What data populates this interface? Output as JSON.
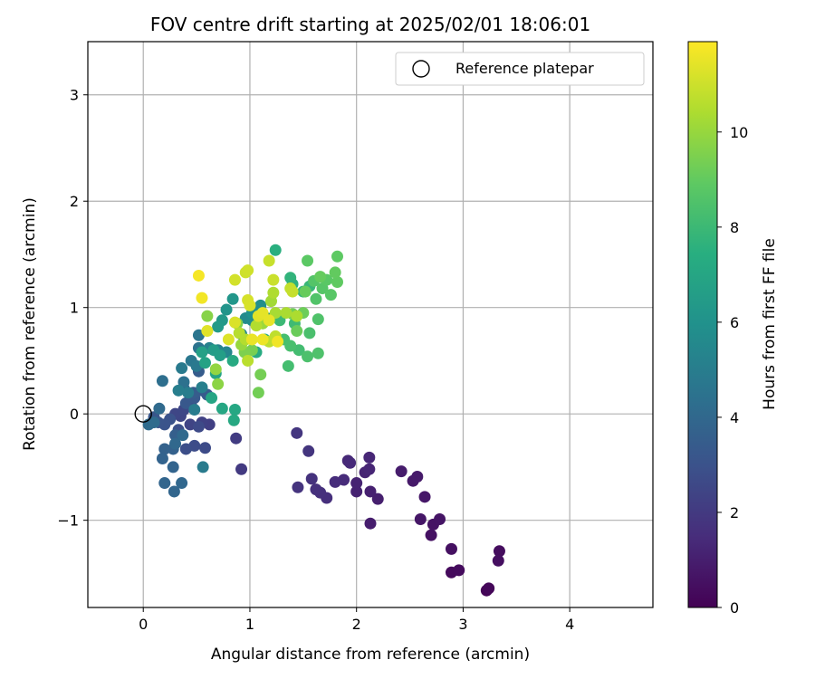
{
  "chart_data": {
    "type": "scatter",
    "title": "FOV centre drift starting at 2025/02/01 18:06:01",
    "xlabel": "Angular distance from reference (arcmin)",
    "ylabel": "Rotation from reference (arcmin)",
    "xlim": [
      -0.52,
      4.78
    ],
    "ylim": [
      -1.82,
      3.5
    ],
    "xticks": [
      0,
      1,
      2,
      3,
      4
    ],
    "yticks": [
      -1,
      0,
      1,
      2,
      3
    ],
    "grid": true,
    "legend": {
      "placement": "top-right",
      "entries": [
        "Reference platepar"
      ]
    },
    "reference_point": {
      "x": 0,
      "y": 0,
      "marker": "open-circle"
    },
    "colorbar": {
      "label": "Hours from first FF file",
      "range": [
        0,
        11.9
      ],
      "ticks": [
        0,
        2,
        4,
        6,
        8,
        10
      ],
      "colormap": "viridis"
    },
    "points": [
      {
        "x": 3.22,
        "y": -1.66,
        "c": 0.1
      },
      {
        "x": 3.24,
        "y": -1.64,
        "c": 0.2
      },
      {
        "x": 2.89,
        "y": -1.49,
        "c": 0.3
      },
      {
        "x": 2.96,
        "y": -1.47,
        "c": 0.35
      },
      {
        "x": 3.34,
        "y": -1.29,
        "c": 0.4
      },
      {
        "x": 3.33,
        "y": -1.38,
        "c": 0.45
      },
      {
        "x": 2.89,
        "y": -1.27,
        "c": 0.5
      },
      {
        "x": 2.7,
        "y": -1.14,
        "c": 0.55
      },
      {
        "x": 2.72,
        "y": -1.04,
        "c": 0.6
      },
      {
        "x": 2.78,
        "y": -0.99,
        "c": 0.65
      },
      {
        "x": 2.6,
        "y": -0.99,
        "c": 0.7
      },
      {
        "x": 2.64,
        "y": -0.78,
        "c": 0.75
      },
      {
        "x": 2.53,
        "y": -0.63,
        "c": 0.8
      },
      {
        "x": 2.57,
        "y": -0.59,
        "c": 0.85
      },
      {
        "x": 2.42,
        "y": -0.54,
        "c": 0.9
      },
      {
        "x": 2.13,
        "y": -1.03,
        "c": 0.95
      },
      {
        "x": 2.2,
        "y": -0.8,
        "c": 1.0
      },
      {
        "x": 2.13,
        "y": -0.73,
        "c": 1.05
      },
      {
        "x": 2.0,
        "y": -0.73,
        "c": 1.1
      },
      {
        "x": 2.0,
        "y": -0.65,
        "c": 1.15
      },
      {
        "x": 2.08,
        "y": -0.55,
        "c": 1.2
      },
      {
        "x": 2.12,
        "y": -0.52,
        "c": 1.25
      },
      {
        "x": 2.12,
        "y": -0.41,
        "c": 1.3
      },
      {
        "x": 1.92,
        "y": -0.44,
        "c": 1.35
      },
      {
        "x": 1.94,
        "y": -0.46,
        "c": 1.4
      },
      {
        "x": 1.88,
        "y": -0.62,
        "c": 1.45
      },
      {
        "x": 1.8,
        "y": -0.64,
        "c": 1.5
      },
      {
        "x": 1.72,
        "y": -0.79,
        "c": 1.55
      },
      {
        "x": 1.66,
        "y": -0.74,
        "c": 1.6
      },
      {
        "x": 1.62,
        "y": -0.71,
        "c": 1.65
      },
      {
        "x": 1.58,
        "y": -0.61,
        "c": 1.7
      },
      {
        "x": 1.45,
        "y": -0.69,
        "c": 1.75
      },
      {
        "x": 1.55,
        "y": -0.35,
        "c": 1.8
      },
      {
        "x": 1.44,
        "y": -0.18,
        "c": 1.85
      },
      {
        "x": 0.92,
        "y": -0.52,
        "c": 2.0
      },
      {
        "x": 0.87,
        "y": -0.23,
        "c": 2.1
      },
      {
        "x": 0.62,
        "y": -0.1,
        "c": 2.2
      },
      {
        "x": 0.55,
        "y": -0.08,
        "c": 2.3
      },
      {
        "x": 0.44,
        "y": -0.1,
        "c": 2.4
      },
      {
        "x": 0.35,
        "y": -0.02,
        "c": 2.45
      },
      {
        "x": 0.3,
        "y": 0.0,
        "c": 2.5
      },
      {
        "x": 0.38,
        "y": 0.04,
        "c": 2.55
      },
      {
        "x": 0.45,
        "y": 0.08,
        "c": 2.6
      },
      {
        "x": 0.52,
        "y": -0.12,
        "c": 2.65
      },
      {
        "x": 0.58,
        "y": -0.32,
        "c": 2.7
      },
      {
        "x": 0.48,
        "y": -0.3,
        "c": 2.75
      },
      {
        "x": 0.4,
        "y": -0.33,
        "c": 2.8
      },
      {
        "x": 0.33,
        "y": -0.15,
        "c": 2.9
      },
      {
        "x": 0.25,
        "y": -0.05,
        "c": 3.0
      },
      {
        "x": 0.2,
        "y": -0.1,
        "c": 3.05
      },
      {
        "x": 0.14,
        "y": -0.08,
        "c": 3.1
      },
      {
        "x": 0.1,
        "y": -0.03,
        "c": 3.2
      },
      {
        "x": 0.4,
        "y": 0.1,
        "c": 3.25
      },
      {
        "x": 0.48,
        "y": 0.15,
        "c": 3.3
      },
      {
        "x": 0.55,
        "y": 0.22,
        "c": 3.35
      },
      {
        "x": 0.6,
        "y": 0.18,
        "c": 3.4
      },
      {
        "x": 0.52,
        "y": 0.4,
        "c": 3.45
      },
      {
        "x": 0.47,
        "y": 0.2,
        "c": 3.5
      },
      {
        "x": 0.38,
        "y": 0.24,
        "c": 3.55
      },
      {
        "x": 0.3,
        "y": -0.2,
        "c": 3.6
      },
      {
        "x": 0.28,
        "y": -0.33,
        "c": 3.65
      },
      {
        "x": 0.2,
        "y": -0.33,
        "c": 3.7
      },
      {
        "x": 0.18,
        "y": -0.42,
        "c": 3.75
      },
      {
        "x": 0.28,
        "y": -0.5,
        "c": 3.8
      },
      {
        "x": 0.2,
        "y": -0.65,
        "c": 3.85
      },
      {
        "x": 0.29,
        "y": -0.73,
        "c": 3.9
      },
      {
        "x": 0.36,
        "y": -0.65,
        "c": 3.95
      },
      {
        "x": 0.3,
        "y": -0.28,
        "c": 4.0
      },
      {
        "x": 0.37,
        "y": -0.2,
        "c": 4.05
      },
      {
        "x": 0.15,
        "y": 0.05,
        "c": 4.1
      },
      {
        "x": 0.05,
        "y": -0.1,
        "c": 4.15
      },
      {
        "x": 0.1,
        "y": -0.08,
        "c": 4.2
      },
      {
        "x": 0.18,
        "y": 0.31,
        "c": 4.3
      },
      {
        "x": 0.38,
        "y": 0.3,
        "c": 4.4
      },
      {
        "x": 0.52,
        "y": 0.62,
        "c": 4.5
      },
      {
        "x": 0.52,
        "y": 0.74,
        "c": 4.6
      },
      {
        "x": 0.45,
        "y": 0.5,
        "c": 4.7
      },
      {
        "x": 0.5,
        "y": 0.45,
        "c": 4.8
      },
      {
        "x": 0.36,
        "y": 0.43,
        "c": 4.85
      },
      {
        "x": 0.56,
        "y": -0.5,
        "c": 4.9
      },
      {
        "x": 0.48,
        "y": 0.04,
        "c": 4.95
      },
      {
        "x": 0.42,
        "y": 0.2,
        "c": 5.0
      },
      {
        "x": 0.33,
        "y": 0.22,
        "c": 5.05
      },
      {
        "x": 0.55,
        "y": 0.25,
        "c": 5.1
      },
      {
        "x": 0.62,
        "y": 0.62,
        "c": 5.2
      },
      {
        "x": 0.7,
        "y": 0.6,
        "c": 5.3
      },
      {
        "x": 0.78,
        "y": 0.58,
        "c": 5.4
      },
      {
        "x": 0.92,
        "y": 0.75,
        "c": 5.5
      },
      {
        "x": 0.96,
        "y": 0.9,
        "c": 5.6
      },
      {
        "x": 1.02,
        "y": 0.88,
        "c": 5.7
      },
      {
        "x": 1.1,
        "y": 1.02,
        "c": 5.8
      },
      {
        "x": 1.16,
        "y": 0.9,
        "c": 5.9
      },
      {
        "x": 1.02,
        "y": 0.95,
        "c": 6.0
      },
      {
        "x": 0.78,
        "y": 0.98,
        "c": 6.1
      },
      {
        "x": 0.84,
        "y": 1.08,
        "c": 6.2
      },
      {
        "x": 0.74,
        "y": 0.88,
        "c": 6.3
      },
      {
        "x": 0.7,
        "y": 0.82,
        "c": 6.4
      },
      {
        "x": 0.66,
        "y": 0.6,
        "c": 6.5
      },
      {
        "x": 0.72,
        "y": 0.55,
        "c": 6.6
      },
      {
        "x": 0.55,
        "y": 0.58,
        "c": 6.7
      },
      {
        "x": 0.58,
        "y": 0.48,
        "c": 6.8
      },
      {
        "x": 0.68,
        "y": 0.38,
        "c": 6.9
      },
      {
        "x": 0.64,
        "y": 0.15,
        "c": 7.0
      },
      {
        "x": 0.74,
        "y": 0.05,
        "c": 7.05
      },
      {
        "x": 0.86,
        "y": 0.04,
        "c": 7.1
      },
      {
        "x": 0.85,
        "y": -0.06,
        "c": 7.15
      },
      {
        "x": 0.84,
        "y": 0.5,
        "c": 7.2
      },
      {
        "x": 1.06,
        "y": 0.58,
        "c": 7.3
      },
      {
        "x": 1.14,
        "y": 0.7,
        "c": 7.4
      },
      {
        "x": 1.24,
        "y": 1.54,
        "c": 7.5
      },
      {
        "x": 1.4,
        "y": 1.22,
        "c": 7.6
      },
      {
        "x": 1.38,
        "y": 1.28,
        "c": 7.7
      },
      {
        "x": 1.5,
        "y": 1.15,
        "c": 7.8
      },
      {
        "x": 1.56,
        "y": 1.2,
        "c": 7.9
      },
      {
        "x": 1.28,
        "y": 0.88,
        "c": 8.0
      },
      {
        "x": 1.42,
        "y": 0.85,
        "c": 8.1
      },
      {
        "x": 1.46,
        "y": 0.6,
        "c": 8.2
      },
      {
        "x": 1.36,
        "y": 0.45,
        "c": 8.25
      },
      {
        "x": 1.32,
        "y": 0.7,
        "c": 8.3
      },
      {
        "x": 1.38,
        "y": 0.64,
        "c": 8.35
      },
      {
        "x": 1.56,
        "y": 0.76,
        "c": 8.4
      },
      {
        "x": 1.54,
        "y": 0.54,
        "c": 8.45
      },
      {
        "x": 1.64,
        "y": 0.57,
        "c": 8.5
      },
      {
        "x": 1.64,
        "y": 0.89,
        "c": 8.55
      },
      {
        "x": 1.62,
        "y": 1.08,
        "c": 8.6
      },
      {
        "x": 1.6,
        "y": 1.25,
        "c": 8.65
      },
      {
        "x": 1.68,
        "y": 1.18,
        "c": 8.7
      },
      {
        "x": 1.76,
        "y": 1.12,
        "c": 8.75
      },
      {
        "x": 1.72,
        "y": 1.26,
        "c": 8.8
      },
      {
        "x": 1.54,
        "y": 1.44,
        "c": 8.85
      },
      {
        "x": 1.82,
        "y": 1.48,
        "c": 8.9
      },
      {
        "x": 1.82,
        "y": 1.24,
        "c": 8.95
      },
      {
        "x": 1.8,
        "y": 1.33,
        "c": 9.0
      },
      {
        "x": 1.66,
        "y": 1.29,
        "c": 9.05
      },
      {
        "x": 1.52,
        "y": 1.15,
        "c": 9.1
      },
      {
        "x": 1.44,
        "y": 0.78,
        "c": 9.15
      },
      {
        "x": 1.5,
        "y": 0.95,
        "c": 9.2
      },
      {
        "x": 1.4,
        "y": 0.94,
        "c": 9.25
      },
      {
        "x": 1.08,
        "y": 0.2,
        "c": 9.3
      },
      {
        "x": 1.1,
        "y": 0.37,
        "c": 9.35
      },
      {
        "x": 1.02,
        "y": 0.6,
        "c": 9.4
      },
      {
        "x": 0.95,
        "y": 0.58,
        "c": 9.5
      },
      {
        "x": 0.88,
        "y": 0.85,
        "c": 9.6
      },
      {
        "x": 0.6,
        "y": 0.92,
        "c": 9.7
      },
      {
        "x": 0.7,
        "y": 0.28,
        "c": 9.8
      },
      {
        "x": 0.68,
        "y": 0.42,
        "c": 9.9
      },
      {
        "x": 0.92,
        "y": 0.65,
        "c": 10.0
      },
      {
        "x": 1.12,
        "y": 0.85,
        "c": 10.1
      },
      {
        "x": 1.2,
        "y": 1.06,
        "c": 10.2
      },
      {
        "x": 1.24,
        "y": 0.95,
        "c": 10.3
      },
      {
        "x": 1.34,
        "y": 0.95,
        "c": 10.35
      },
      {
        "x": 1.44,
        "y": 0.92,
        "c": 10.4
      },
      {
        "x": 1.22,
        "y": 1.14,
        "c": 10.45
      },
      {
        "x": 1.06,
        "y": 0.83,
        "c": 10.5
      },
      {
        "x": 0.96,
        "y": 0.7,
        "c": 10.55
      },
      {
        "x": 0.9,
        "y": 0.76,
        "c": 10.6
      },
      {
        "x": 0.98,
        "y": 0.5,
        "c": 10.65
      },
      {
        "x": 1.18,
        "y": 0.68,
        "c": 10.7
      },
      {
        "x": 1.24,
        "y": 0.73,
        "c": 10.75
      },
      {
        "x": 1.38,
        "y": 1.18,
        "c": 10.8
      },
      {
        "x": 1.4,
        "y": 1.15,
        "c": 10.85
      },
      {
        "x": 1.18,
        "y": 1.44,
        "c": 10.9
      },
      {
        "x": 1.22,
        "y": 1.26,
        "c": 10.95
      },
      {
        "x": 0.96,
        "y": 1.33,
        "c": 11.0
      },
      {
        "x": 0.98,
        "y": 1.35,
        "c": 11.05
      },
      {
        "x": 0.86,
        "y": 1.26,
        "c": 11.1
      },
      {
        "x": 0.98,
        "y": 1.07,
        "c": 11.15
      },
      {
        "x": 1.0,
        "y": 1.02,
        "c": 11.2
      },
      {
        "x": 0.86,
        "y": 0.86,
        "c": 11.25
      },
      {
        "x": 0.8,
        "y": 0.7,
        "c": 11.3
      },
      {
        "x": 0.6,
        "y": 0.78,
        "c": 11.35
      },
      {
        "x": 1.08,
        "y": 0.92,
        "c": 11.4
      },
      {
        "x": 1.12,
        "y": 0.95,
        "c": 11.45
      },
      {
        "x": 1.18,
        "y": 0.88,
        "c": 11.5
      },
      {
        "x": 1.02,
        "y": 0.7,
        "c": 11.55
      },
      {
        "x": 1.12,
        "y": 0.7,
        "c": 11.6
      },
      {
        "x": 1.26,
        "y": 0.68,
        "c": 11.65
      },
      {
        "x": 0.55,
        "y": 1.09,
        "c": 11.7
      },
      {
        "x": 0.52,
        "y": 1.3,
        "c": 11.75
      }
    ]
  }
}
